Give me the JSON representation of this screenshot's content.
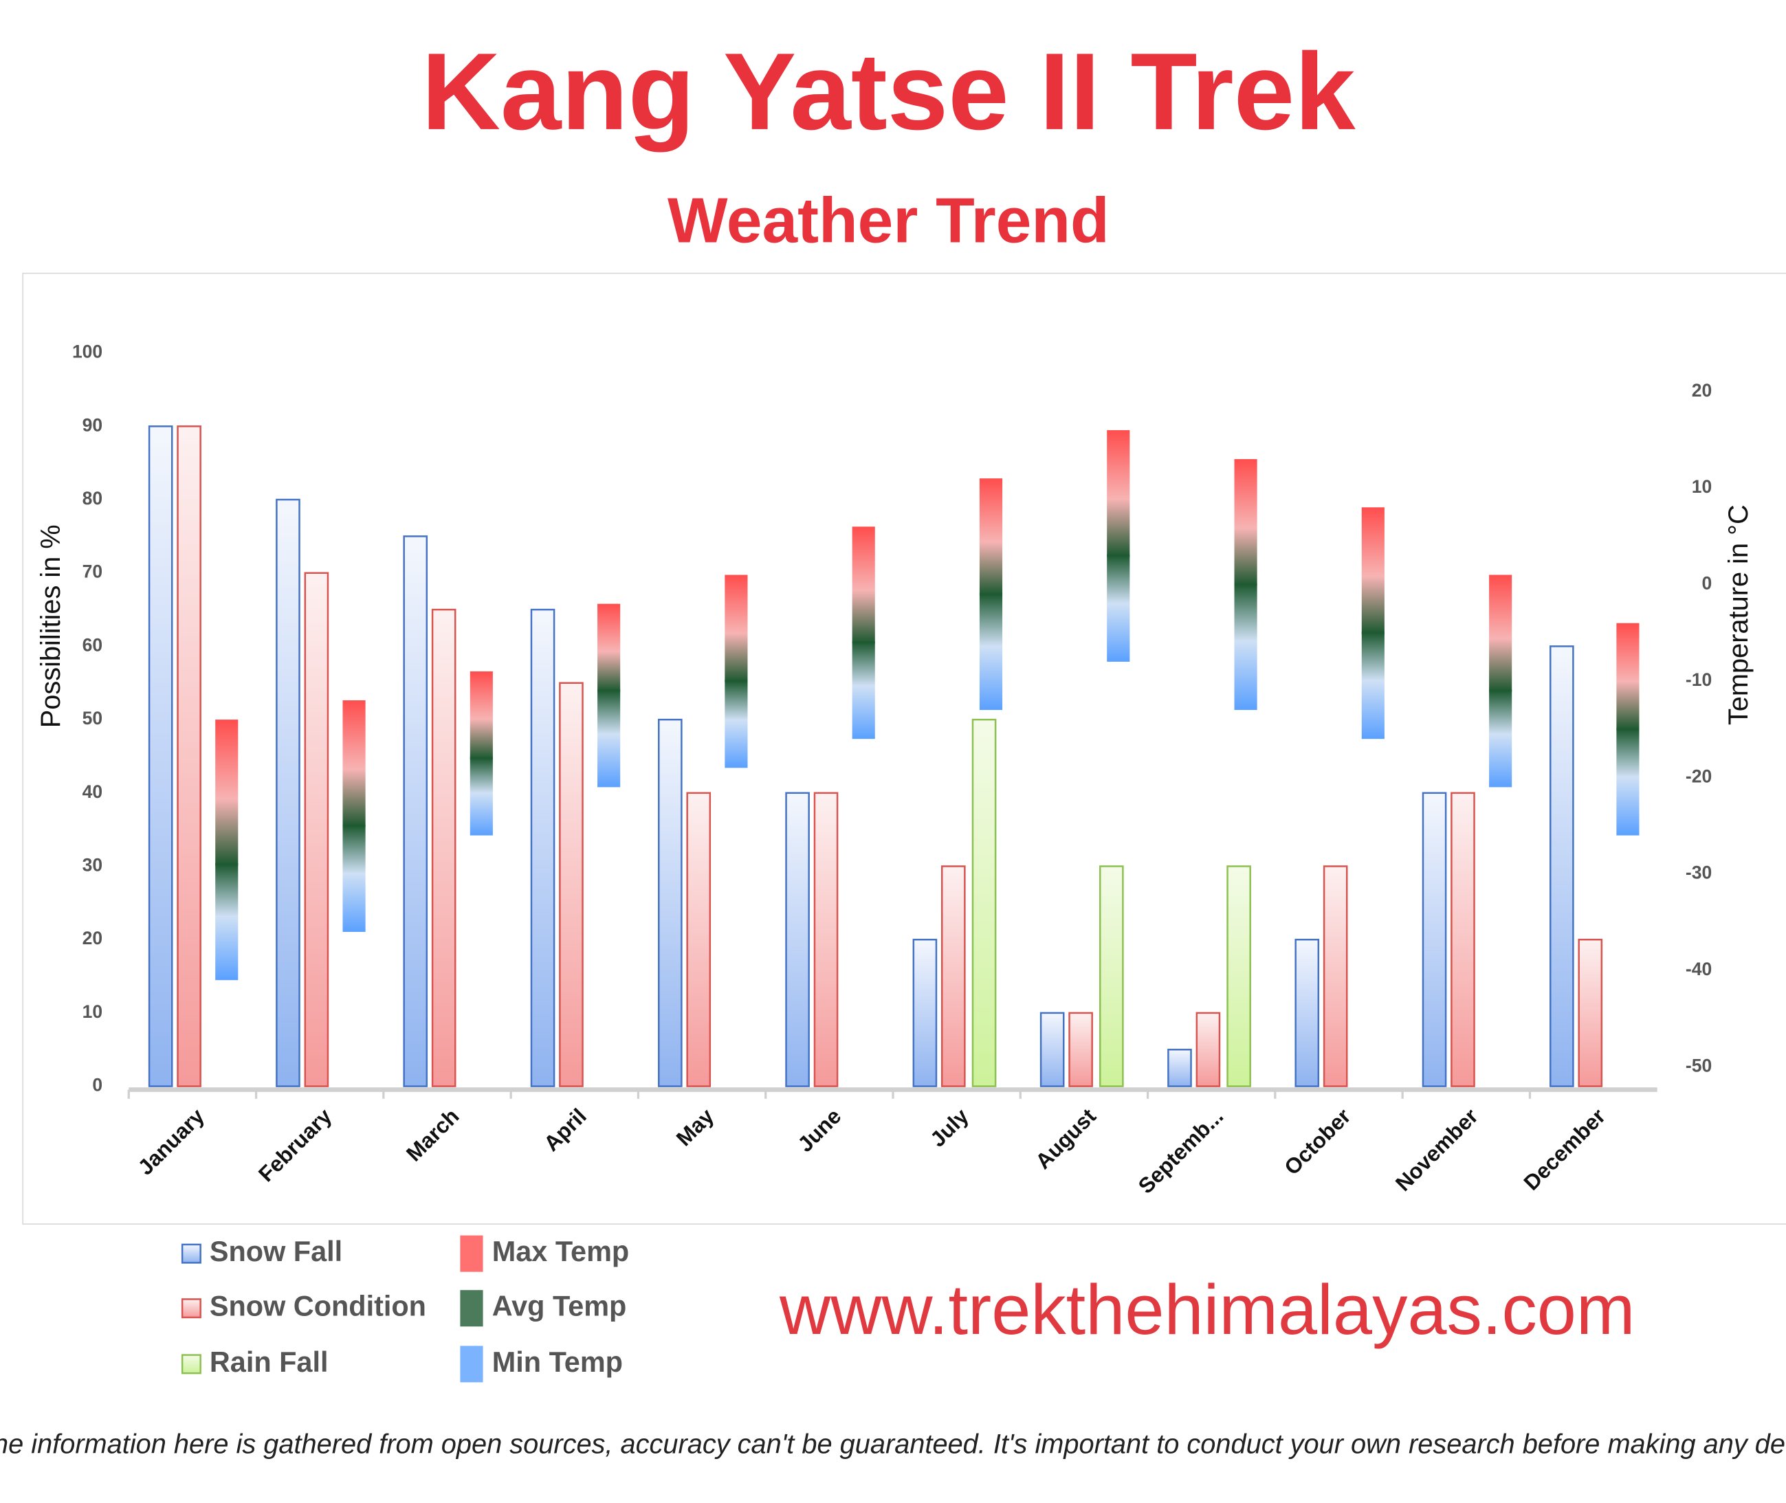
{
  "chart_data": {
    "type": "bar",
    "title": "Kang Yatse II Trek",
    "subtitle": "Weather Trend",
    "y_label": "Possibilities in %",
    "y2_label": "Temperature in °C",
    "website": "www.trekthehimalayas.com",
    "disclaimer": "While the information here is gathered from open sources, accuracy can't be guaranteed. It's important to conduct your own research before making any decisions.",
    "categories": [
      "January",
      "February",
      "March",
      "April",
      "May",
      "June",
      "July",
      "August",
      "Septemb...",
      "October",
      "November",
      "December"
    ],
    "series": [
      {
        "name": "Snow Fall",
        "color": "#4472c4",
        "values": [
          90,
          80,
          75,
          65,
          50,
          40,
          20,
          10,
          5,
          20,
          40,
          60
        ]
      },
      {
        "name": "Snow Condition",
        "color": "#d9534f",
        "values": [
          90,
          70,
          65,
          55,
          40,
          40,
          30,
          10,
          10,
          30,
          40,
          20
        ]
      },
      {
        "name": "Rain Fall",
        "color": "#8cc152",
        "values": [
          null,
          null,
          null,
          null,
          null,
          null,
          50,
          30,
          30,
          null,
          null,
          null
        ]
      },
      {
        "name": "Max Temp",
        "color": "#ff4d4d",
        "axis": "y2",
        "values": [
          -14,
          -12,
          -9,
          -2,
          1,
          6,
          11,
          16,
          13,
          8,
          1,
          -4
        ]
      },
      {
        "name": "Avg Temp",
        "color": "#1e5a32",
        "axis": "y2",
        "values": [
          -29,
          -25,
          -18,
          -11,
          -10,
          -6,
          -1,
          3,
          0,
          -5,
          -11,
          -15
        ]
      },
      {
        "name": "Min Temp",
        "color": "#5aa0ff",
        "axis": "y2",
        "values": [
          -41,
          -36,
          -26,
          -21,
          -19,
          -16,
          -13,
          -8,
          -13,
          -16,
          -21,
          -26
        ]
      }
    ],
    "ylim": [
      0,
      100
    ],
    "yticks": [
      0,
      10,
      20,
      30,
      40,
      50,
      60,
      70,
      80,
      90,
      100
    ],
    "y2lim": [
      -52,
      24
    ],
    "y2ticks": [
      -50,
      -40,
      -30,
      -20,
      -10,
      0,
      10,
      20
    ]
  }
}
